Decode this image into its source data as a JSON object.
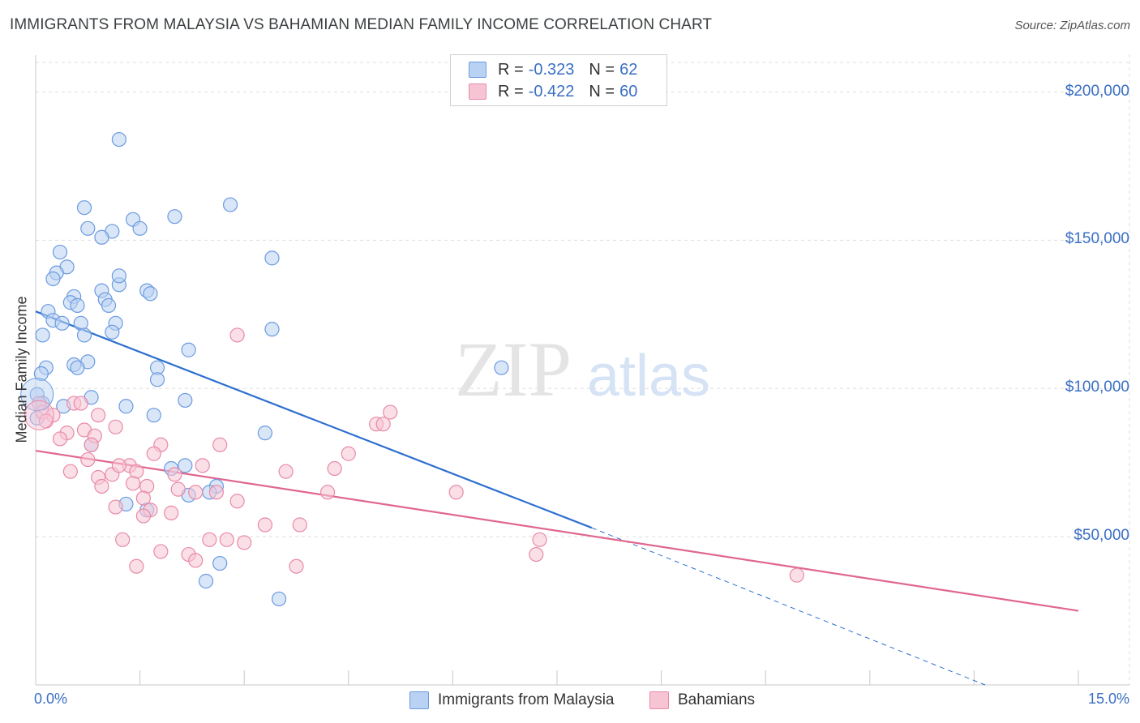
{
  "title": "IMMIGRANTS FROM MALAYSIA VS BAHAMIAN MEDIAN FAMILY INCOME CORRELATION CHART",
  "source": "Source: ZipAtlas.com",
  "watermark": {
    "zip": "ZIP",
    "atlas": "atlas"
  },
  "legend": {
    "series1": {
      "r_label": "R =",
      "r_value": "-0.323",
      "n_label": "N =",
      "n_value": "62"
    },
    "series2": {
      "r_label": "R =",
      "r_value": "-0.422",
      "n_label": "N =",
      "n_value": "60"
    }
  },
  "colors": {
    "blue_fill": "#b9d1f2",
    "blue_stroke": "#6b9be0",
    "blue_line": "#2d6fcf",
    "pink_fill": "#f7c4d4",
    "pink_stroke": "#e88aa8",
    "pink_line": "#e0678f",
    "axis_text": "#3a6fc4",
    "grid": "#dedede"
  },
  "chart_data": {
    "type": "scatter",
    "xlabel": "",
    "ylabel": "Median Family Income",
    "xlim": [
      0,
      15
    ],
    "ylim": [
      0,
      210000
    ],
    "x_tick_labels": [
      "0.0%",
      "15.0%"
    ],
    "y_tick_labels": [
      "$50,000",
      "$100,000",
      "$150,000",
      "$200,000"
    ],
    "y_ticks": [
      50000,
      100000,
      150000,
      200000
    ],
    "grid": true,
    "legend_position": "top-center",
    "series": [
      {
        "name": "Immigrants from Malaysia",
        "color": "#6b9be0",
        "trend": {
          "x": [
            0.0,
            8.0
          ],
          "y": [
            126000,
            53000
          ],
          "dashed_to": [
            13.0,
            0
          ]
        },
        "points": [
          [
            1.2,
            184000
          ],
          [
            0.7,
            161000
          ],
          [
            2.8,
            162000
          ],
          [
            2.0,
            158000
          ],
          [
            1.4,
            157000
          ],
          [
            0.75,
            154000
          ],
          [
            1.5,
            154000
          ],
          [
            1.1,
            153000
          ],
          [
            0.95,
            151000
          ],
          [
            3.4,
            144000
          ],
          [
            0.35,
            146000
          ],
          [
            0.45,
            141000
          ],
          [
            0.3,
            139000
          ],
          [
            0.25,
            137000
          ],
          [
            1.2,
            135000
          ],
          [
            0.95,
            133000
          ],
          [
            1.6,
            133000
          ],
          [
            1.65,
            132000
          ],
          [
            0.55,
            131000
          ],
          [
            1.0,
            130000
          ],
          [
            0.5,
            129000
          ],
          [
            0.6,
            128000
          ],
          [
            1.05,
            128000
          ],
          [
            0.18,
            126000
          ],
          [
            0.25,
            123000
          ],
          [
            0.38,
            122000
          ],
          [
            0.65,
            122000
          ],
          [
            1.15,
            122000
          ],
          [
            3.4,
            120000
          ],
          [
            1.1,
            119000
          ],
          [
            0.7,
            118000
          ],
          [
            0.1,
            118000
          ],
          [
            2.2,
            113000
          ],
          [
            0.75,
            109000
          ],
          [
            0.55,
            108000
          ],
          [
            0.6,
            107000
          ],
          [
            0.15,
            107000
          ],
          [
            1.75,
            107000
          ],
          [
            0.08,
            105000
          ],
          [
            6.7,
            107000
          ],
          [
            1.75,
            103000
          ],
          [
            0.8,
            97000
          ],
          [
            2.15,
            96000
          ],
          [
            1.3,
            94000
          ],
          [
            0.4,
            94000
          ],
          [
            1.7,
            91000
          ],
          [
            3.3,
            85000
          ],
          [
            0.8,
            81000
          ],
          [
            2.15,
            74000
          ],
          [
            1.95,
            73000
          ],
          [
            2.6,
            67000
          ],
          [
            2.5,
            65000
          ],
          [
            2.2,
            64000
          ],
          [
            1.3,
            61000
          ],
          [
            1.6,
            59000
          ],
          [
            2.65,
            41000
          ],
          [
            2.45,
            35000
          ],
          [
            3.5,
            29000
          ],
          [
            0.02,
            98000
          ],
          [
            0.02,
            90000
          ],
          [
            0.1,
            95000
          ],
          [
            1.2,
            138000
          ]
        ]
      },
      {
        "name": "Bahamians",
        "color": "#e88aa8",
        "trend": {
          "x": [
            0.0,
            15.0
          ],
          "y": [
            79000,
            25000
          ]
        },
        "points": [
          [
            2.9,
            118000
          ],
          [
            0.05,
            95000
          ],
          [
            0.55,
            95000
          ],
          [
            0.65,
            95000
          ],
          [
            0.1,
            92000
          ],
          [
            0.25,
            91000
          ],
          [
            5.1,
            92000
          ],
          [
            0.9,
            91000
          ],
          [
            0.15,
            89000
          ],
          [
            4.9,
            88000
          ],
          [
            5.0,
            88000
          ],
          [
            1.15,
            87000
          ],
          [
            0.7,
            86000
          ],
          [
            0.45,
            85000
          ],
          [
            0.85,
            84000
          ],
          [
            0.35,
            83000
          ],
          [
            1.8,
            81000
          ],
          [
            2.65,
            81000
          ],
          [
            0.8,
            81000
          ],
          [
            1.7,
            78000
          ],
          [
            4.5,
            78000
          ],
          [
            0.75,
            76000
          ],
          [
            1.35,
            74000
          ],
          [
            2.4,
            74000
          ],
          [
            1.45,
            72000
          ],
          [
            0.5,
            72000
          ],
          [
            4.3,
            73000
          ],
          [
            3.6,
            72000
          ],
          [
            1.1,
            71000
          ],
          [
            2.0,
            71000
          ],
          [
            0.9,
            70000
          ],
          [
            1.4,
            68000
          ],
          [
            1.6,
            67000
          ],
          [
            0.95,
            67000
          ],
          [
            2.05,
            66000
          ],
          [
            2.3,
            65000
          ],
          [
            4.2,
            65000
          ],
          [
            6.05,
            65000
          ],
          [
            1.55,
            63000
          ],
          [
            2.9,
            62000
          ],
          [
            1.15,
            60000
          ],
          [
            1.65,
            59000
          ],
          [
            1.95,
            58000
          ],
          [
            1.55,
            57000
          ],
          [
            3.3,
            54000
          ],
          [
            3.8,
            54000
          ],
          [
            1.25,
            49000
          ],
          [
            2.5,
            49000
          ],
          [
            2.75,
            49000
          ],
          [
            3.0,
            48000
          ],
          [
            7.25,
            49000
          ],
          [
            1.8,
            45000
          ],
          [
            2.2,
            44000
          ],
          [
            2.3,
            42000
          ],
          [
            1.45,
            40000
          ],
          [
            3.75,
            40000
          ],
          [
            7.2,
            44000
          ],
          [
            10.95,
            37000
          ],
          [
            2.6,
            65000
          ],
          [
            1.2,
            74000
          ]
        ]
      }
    ]
  }
}
